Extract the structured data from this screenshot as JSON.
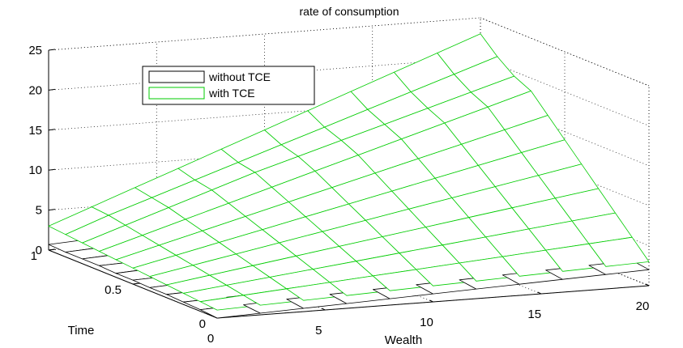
{
  "chart_data": {
    "type": "surface",
    "title": "rate of consumption",
    "xlabel": "Wealth",
    "ylabel": "Time",
    "zlabel": "",
    "xlim": [
      0,
      20
    ],
    "ylim": [
      0,
      1
    ],
    "zlim": [
      0,
      25
    ],
    "x_ticks": [
      0,
      5,
      10,
      15,
      20
    ],
    "y_ticks": [
      0,
      0.5,
      1
    ],
    "z_ticks": [
      0,
      5,
      10,
      15,
      20,
      25
    ],
    "x_tick_labels": [
      "0",
      "5",
      "10",
      "15",
      "20"
    ],
    "y_tick_labels": [
      "0",
      "0.5",
      "1"
    ],
    "z_tick_labels": [
      "0",
      "5",
      "10",
      "15",
      "20",
      "25"
    ],
    "grid": true,
    "legend_position": "top-left",
    "legend": [
      "without TCE",
      "with TCE"
    ],
    "series": [
      {
        "name": "without TCE",
        "color": "#000000",
        "x": [
          0,
          2,
          4,
          6,
          8,
          10,
          12,
          14,
          16,
          18,
          20
        ],
        "y": [
          0,
          0.1,
          0.2,
          0.3,
          0.4,
          0.5,
          0.6,
          0.7,
          0.8,
          0.9,
          1.0
        ],
        "z": [
          [
            0.0,
            0.2,
            0.4,
            0.6,
            0.8,
            1.0,
            1.2,
            1.4,
            1.6,
            1.8,
            2.0
          ],
          [
            0.2,
            0.4,
            0.7,
            0.9,
            1.1,
            1.3,
            1.5,
            1.7,
            1.9,
            2.1,
            2.3
          ],
          [
            0.3,
            0.5,
            0.7,
            1.0,
            1.2,
            1.4,
            1.7,
            1.9,
            2.1,
            2.4,
            2.6
          ],
          [
            0.4,
            0.6,
            0.8,
            1.1,
            1.3,
            1.5,
            1.8,
            2.0,
            2.3,
            2.5,
            2.8
          ],
          [
            0.4,
            0.7,
            0.9,
            1.2,
            1.4,
            1.7,
            1.9,
            2.2,
            2.4,
            2.7,
            2.9
          ],
          [
            0.5,
            0.7,
            1.0,
            1.3,
            1.5,
            1.8,
            2.0,
            2.3,
            2.6,
            2.8,
            3.1
          ],
          [
            0.5,
            0.8,
            1.1,
            1.3,
            1.6,
            1.9,
            2.2,
            2.4,
            2.7,
            3.0,
            3.2
          ],
          [
            0.6,
            0.8,
            1.1,
            1.4,
            1.7,
            2.0,
            2.3,
            2.5,
            2.8,
            3.1,
            3.4
          ],
          [
            0.6,
            0.9,
            1.2,
            1.5,
            1.8,
            2.1,
            2.4,
            2.7,
            3.0,
            3.3,
            3.6
          ],
          [
            0.6,
            0.9,
            1.2,
            1.5,
            1.9,
            2.2,
            2.5,
            2.8,
            3.1,
            3.4,
            3.7
          ],
          [
            0.7,
            1.0,
            1.3,
            1.6,
            2.0,
            2.3,
            2.6,
            2.9,
            3.2,
            3.6,
            3.9
          ]
        ]
      },
      {
        "name": "with TCE",
        "color": "#00cc00",
        "x": [
          0,
          2,
          4,
          6,
          8,
          10,
          12,
          14,
          16,
          18,
          20
        ],
        "y": [
          0,
          0.1,
          0.2,
          0.3,
          0.4,
          0.5,
          0.6,
          0.7,
          0.8,
          0.9,
          1.0
        ],
        "z": [
          [
            1.0,
            1.2,
            1.4,
            1.6,
            1.8,
            2.0,
            2.2,
            2.4,
            2.6,
            2.8,
            3.0
          ],
          [
            1.2,
            1.6,
            2.0,
            2.4,
            2.8,
            3.2,
            3.6,
            4.0,
            4.4,
            4.8,
            5.2
          ],
          [
            1.4,
            2.0,
            2.6,
            3.2,
            3.8,
            4.4,
            5.0,
            5.6,
            6.2,
            6.8,
            7.4
          ],
          [
            1.6,
            2.4,
            3.2,
            4.0,
            4.8,
            5.6,
            6.4,
            7.2,
            8.0,
            8.8,
            9.6
          ],
          [
            1.8,
            2.8,
            3.8,
            4.8,
            5.8,
            6.8,
            7.8,
            8.8,
            9.8,
            10.8,
            11.8
          ],
          [
            2.0,
            3.2,
            4.4,
            5.6,
            6.8,
            8.0,
            9.2,
            10.4,
            11.6,
            12.8,
            14.0
          ],
          [
            2.2,
            3.6,
            5.0,
            6.4,
            7.8,
            9.2,
            10.6,
            12.0,
            13.4,
            14.8,
            16.2
          ],
          [
            2.4,
            4.0,
            5.6,
            7.2,
            8.8,
            10.4,
            12.0,
            13.6,
            15.2,
            16.8,
            18.4
          ],
          [
            2.6,
            4.4,
            6.2,
            8.0,
            9.8,
            11.4,
            13.0,
            14.6,
            16.2,
            17.8,
            19.4
          ],
          [
            2.8,
            4.8,
            6.6,
            8.4,
            10.2,
            12.0,
            13.8,
            15.6,
            17.4,
            19.2,
            21.0
          ],
          [
            3.0,
            5.0,
            7.0,
            9.0,
            11.0,
            13.0,
            15.0,
            17.0,
            19.0,
            21.0,
            23.0
          ]
        ]
      }
    ]
  }
}
